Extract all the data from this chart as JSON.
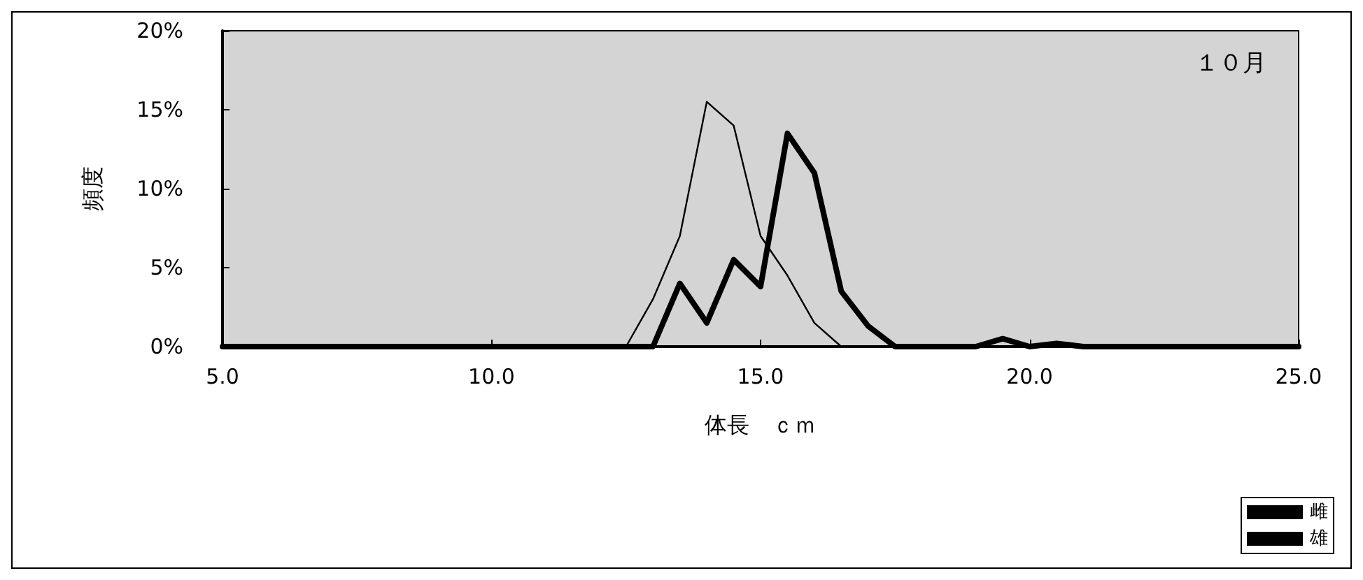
{
  "chart_data": {
    "type": "line",
    "xlabel": "体長　ｃｍ",
    "ylabel": "頻度",
    "annotations": [
      "１０月"
    ],
    "x": [
      5,
      5.5,
      6,
      6.5,
      7,
      7.5,
      8,
      8.5,
      9,
      9.5,
      10,
      10.5,
      11,
      11.5,
      12,
      12.5,
      13,
      13.5,
      14,
      14.5,
      15,
      15.5,
      16,
      16.5,
      17,
      17.5,
      18,
      18.5,
      19,
      19.5,
      20,
      20.5,
      21,
      21.5,
      22,
      22.5,
      23,
      23.5,
      24,
      24.5,
      25
    ],
    "series": [
      {
        "name": "雌",
        "color": "#000000",
        "values": [
          0,
          0,
          0,
          0,
          0,
          0,
          0,
          0,
          0,
          0,
          0,
          0,
          0,
          0,
          0,
          0,
          0,
          4,
          1.5,
          5.5,
          3.8,
          13.5,
          11,
          3.5,
          1.3,
          0,
          0,
          0,
          0,
          0.5,
          0,
          0.2,
          0,
          0,
          0,
          0,
          0,
          0,
          0,
          0,
          0
        ]
      },
      {
        "name": "雄",
        "color": "#000000",
        "values": [
          0,
          0,
          0,
          0,
          0,
          0,
          0,
          0,
          0,
          0,
          0,
          0,
          0,
          0,
          0,
          0,
          3,
          7,
          15.5,
          14,
          7,
          4.5,
          1.5,
          0,
          0,
          0,
          0,
          0,
          0,
          0,
          0,
          0,
          0,
          0,
          0,
          0,
          0,
          0,
          0,
          0,
          0
        ]
      }
    ],
    "xlim": [
      5,
      25
    ],
    "xticks": [
      {
        "value": 5,
        "label": "5.0"
      },
      {
        "value": 10,
        "label": "10.0"
      },
      {
        "value": 15,
        "label": "15.0"
      },
      {
        "value": 20,
        "label": "20.0"
      },
      {
        "value": 25,
        "label": "25.0"
      }
    ],
    "ylim": [
      0,
      20
    ],
    "yticks": [
      {
        "value": 0,
        "label": "0%"
      },
      {
        "value": 5,
        "label": "5%"
      },
      {
        "value": 10,
        "label": "10%"
      },
      {
        "value": 15,
        "label": "15%"
      },
      {
        "value": 20,
        "label": "20%"
      }
    ],
    "legend": "bottom right",
    "grid": false,
    "marker": "none",
    "line_style": "solid"
  }
}
